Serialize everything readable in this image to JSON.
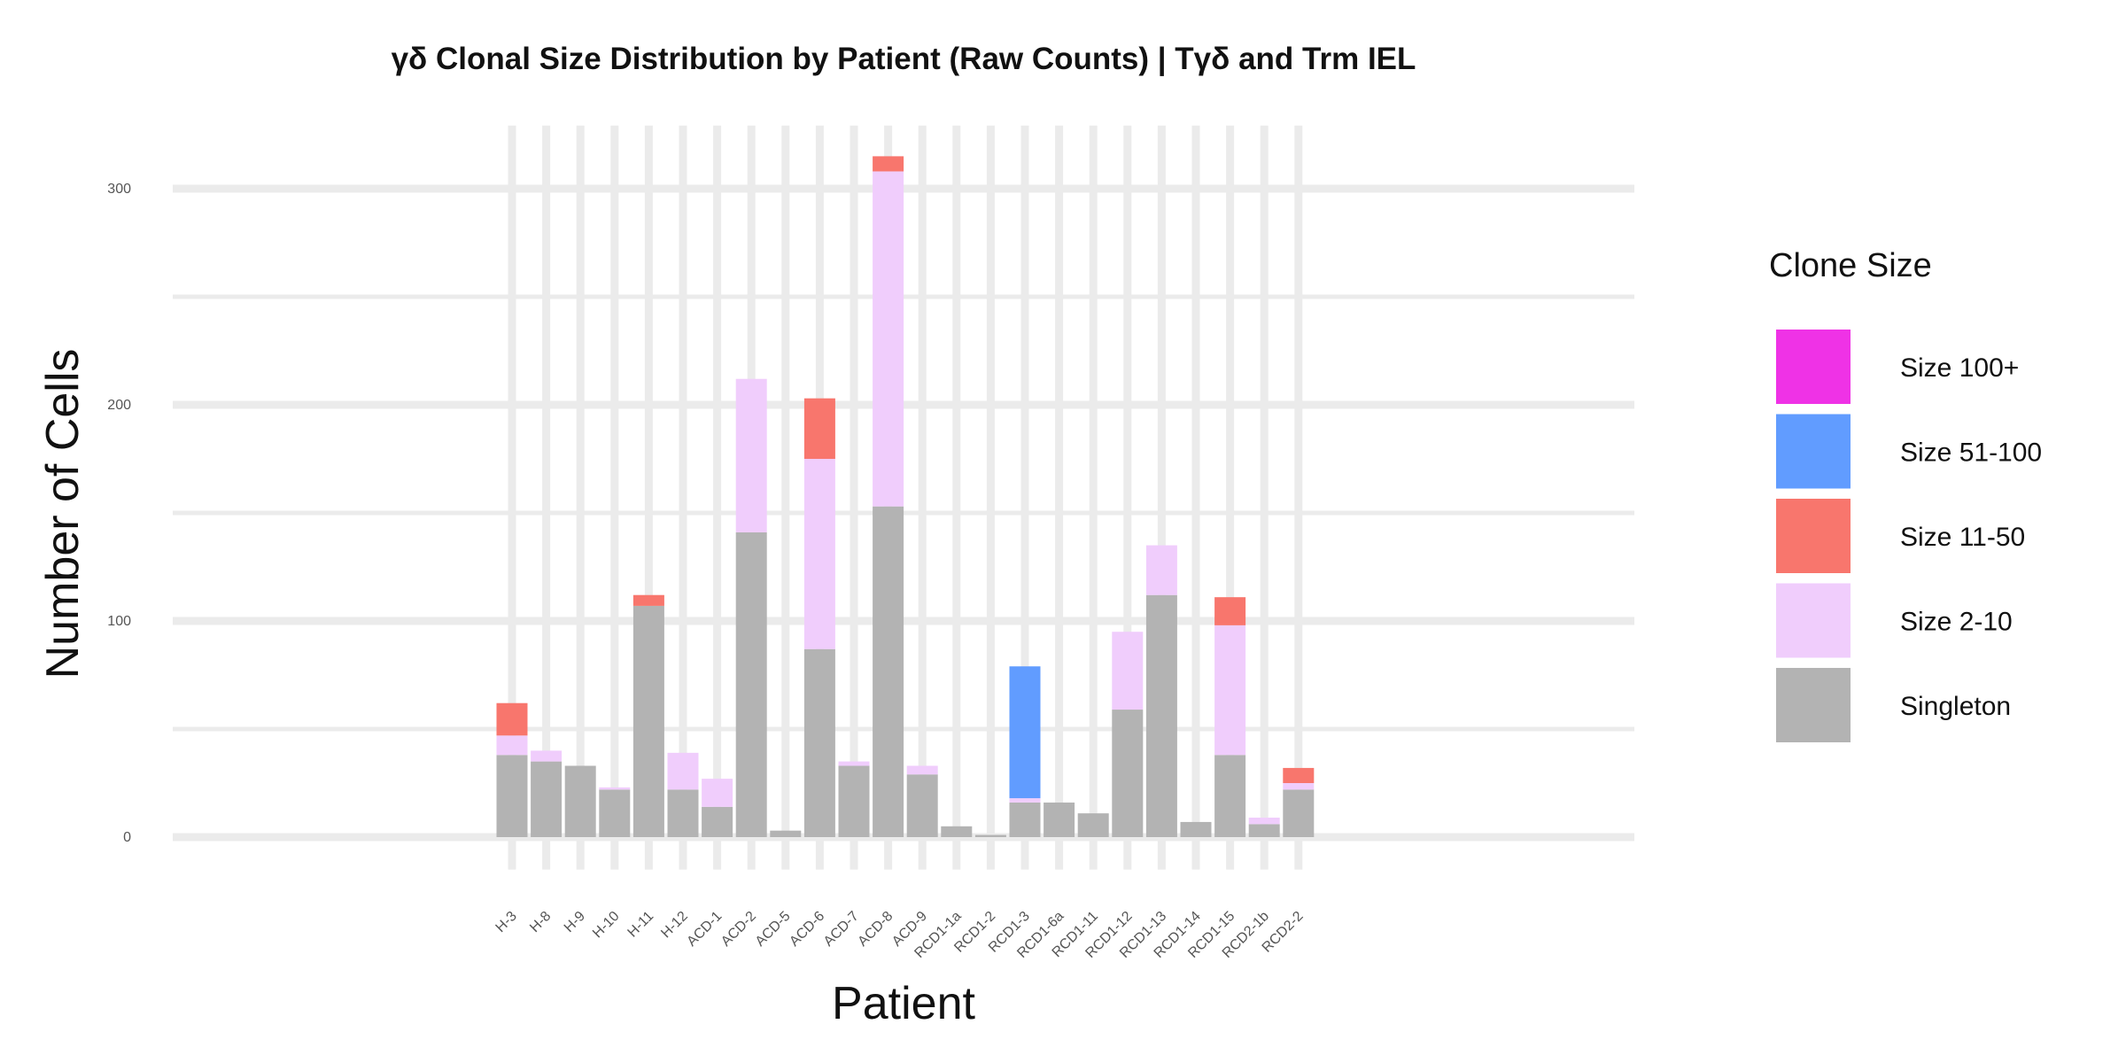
{
  "chart_data": {
    "type": "bar",
    "stacked": true,
    "title": "γδ Clonal Size Distribution by Patient (Raw Counts) | Tγδ and Trm IEL",
    "xlabel": "Patient",
    "ylabel": "Number of Cells",
    "ylim": [
      -15,
      330
    ],
    "yticks": [
      0,
      100,
      200,
      300
    ],
    "grid": true,
    "legend_title": "Clone Size",
    "legend_position": "right",
    "categories": [
      "H-3",
      "H-8",
      "H-9",
      "H-10",
      "H-11",
      "H-12",
      "ACD-1",
      "ACD-2",
      "ACD-5",
      "ACD-6",
      "ACD-7",
      "ACD-8",
      "ACD-9",
      "RCD1-1a",
      "RCD1-2",
      "RCD1-3",
      "RCD1-6a",
      "RCD1-11",
      "RCD1-12",
      "RCD1-13",
      "RCD1-14",
      "RCD1-15",
      "RCD2-1b",
      "RCD2-2"
    ],
    "series": [
      {
        "name": "Singleton",
        "color": "#b3b3b3",
        "values": [
          38,
          35,
          33,
          22,
          107,
          22,
          14,
          141,
          3,
          87,
          33,
          153,
          29,
          5,
          1,
          16,
          16,
          11,
          59,
          112,
          7,
          38,
          6,
          22
        ]
      },
      {
        "name": "Size 2-10",
        "color": "#f0cdfc",
        "values": [
          9,
          5,
          0,
          1,
          0,
          17,
          13,
          71,
          0,
          88,
          2,
          155,
          4,
          0,
          0,
          2,
          0,
          0,
          36,
          23,
          0,
          60,
          3,
          3
        ]
      },
      {
        "name": "Size 11-50",
        "color": "#f8766d",
        "values": [
          15,
          0,
          0,
          0,
          5,
          0,
          0,
          0,
          0,
          28,
          0,
          7,
          0,
          0,
          0,
          0,
          0,
          0,
          0,
          0,
          0,
          13,
          0,
          7
        ]
      },
      {
        "name": "Size 51-100",
        "color": "#619cff",
        "values": [
          0,
          0,
          0,
          0,
          0,
          0,
          0,
          0,
          0,
          0,
          0,
          0,
          0,
          0,
          0,
          61,
          0,
          0,
          0,
          0,
          0,
          0,
          0,
          0
        ]
      },
      {
        "name": "Size 100+",
        "color": "#ef32e6",
        "values": [
          0,
          0,
          0,
          0,
          0,
          0,
          0,
          0,
          0,
          0,
          0,
          0,
          0,
          0,
          0,
          0,
          0,
          0,
          0,
          0,
          0,
          0,
          0,
          0
        ]
      }
    ],
    "legend_order": [
      "Size 100+",
      "Size 51-100",
      "Size 11-50",
      "Size 2-10",
      "Singleton"
    ]
  }
}
